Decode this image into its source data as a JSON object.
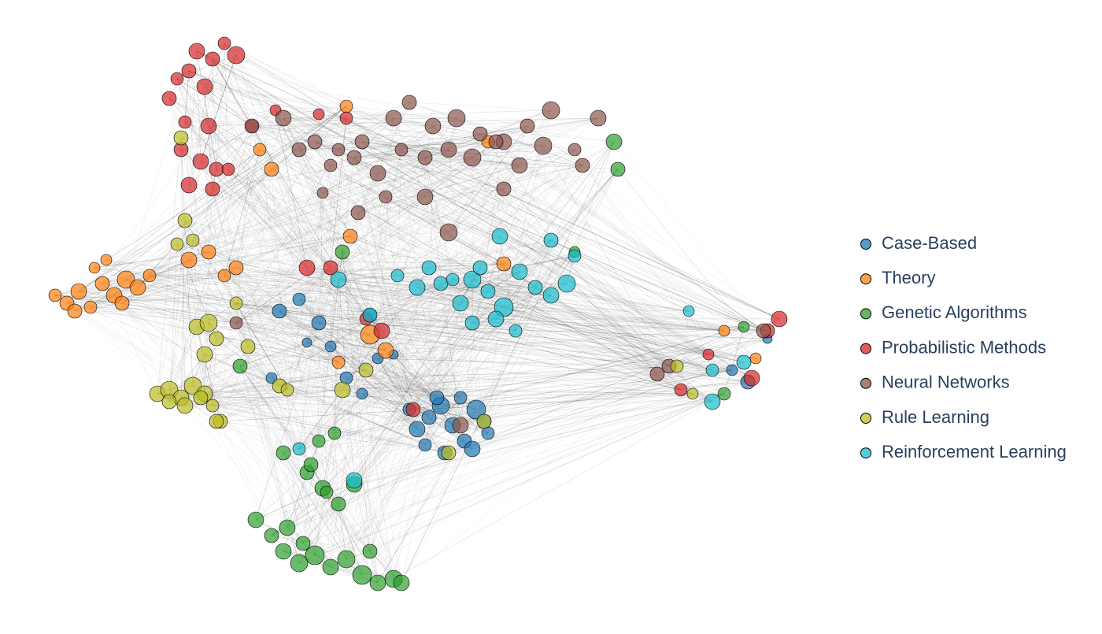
{
  "chart_data": {
    "type": "network",
    "series": [
      {
        "name": "Case-Based",
        "color": "#1f77b4",
        "x": [
          530,
          545,
          560,
          575,
          590,
          605,
          620,
          540,
          565,
          600,
          615,
          585,
          555,
          520,
          355,
          380,
          405,
          420,
          470,
          480,
          500,
          460,
          390,
          950,
          930,
          975,
          345,
          440
        ],
        "y": [
          545,
          530,
          515,
          540,
          560,
          520,
          550,
          565,
          575,
          570,
          535,
          505,
          505,
          520,
          395,
          380,
          410,
          440,
          400,
          455,
          450,
          500,
          435,
          485,
          470,
          430,
          480,
          480
        ],
        "size": [
          10,
          9,
          11,
          10,
          9,
          12,
          8,
          8,
          9,
          10,
          9,
          8,
          9,
          8,
          9,
          8,
          9,
          7,
          8,
          7,
          6,
          7,
          6,
          9,
          7,
          6,
          7,
          8
        ]
      },
      {
        "name": "Theory",
        "color": "#ff7f0e",
        "x": [
          70,
          85,
          100,
          115,
          130,
          145,
          160,
          175,
          190,
          95,
          120,
          155,
          135,
          240,
          265,
          285,
          300,
          330,
          345,
          445,
          470,
          490,
          430,
          440,
          620,
          640,
          960,
          920
        ],
        "y": [
          375,
          385,
          370,
          390,
          360,
          375,
          355,
          365,
          350,
          395,
          340,
          385,
          330,
          330,
          320,
          350,
          340,
          190,
          215,
          300,
          425,
          445,
          460,
          135,
          180,
          335,
          455,
          420
        ],
        "size": [
          8,
          9,
          10,
          8,
          9,
          10,
          11,
          10,
          8,
          9,
          7,
          9,
          7,
          10,
          9,
          8,
          9,
          8,
          9,
          9,
          12,
          10,
          8,
          8,
          8,
          9,
          7,
          7
        ]
      },
      {
        "name": "Genetic Algorithms",
        "color": "#2ca02c",
        "x": [
          360,
          380,
          400,
          420,
          440,
          460,
          480,
          500,
          510,
          390,
          410,
          430,
          450,
          470,
          325,
          345,
          365,
          385,
          405,
          425,
          395,
          415,
          360,
          780,
          785,
          730,
          920,
          945,
          305,
          435
        ],
        "y": [
          700,
          715,
          705,
          720,
          710,
          730,
          740,
          735,
          740,
          600,
          620,
          640,
          615,
          700,
          660,
          680,
          670,
          690,
          560,
          550,
          590,
          625,
          575,
          180,
          215,
          320,
          500,
          415,
          465,
          320
        ],
        "size": [
          10,
          11,
          12,
          10,
          11,
          12,
          10,
          11,
          10,
          9,
          10,
          9,
          10,
          9,
          10,
          9,
          10,
          9,
          8,
          8,
          9,
          8,
          9,
          10,
          9,
          7,
          8,
          7,
          9,
          9
        ]
      },
      {
        "name": "Probabilistic Methods",
        "color": "#d62728",
        "x": [
          250,
          270,
          285,
          300,
          225,
          240,
          260,
          215,
          235,
          265,
          230,
          255,
          275,
          290,
          240,
          270,
          320,
          350,
          405,
          440,
          420,
          390,
          465,
          990,
          975,
          955,
          865,
          900,
          525,
          485
        ],
        "y": [
          65,
          75,
          55,
          70,
          100,
          90,
          110,
          125,
          155,
          160,
          190,
          205,
          215,
          215,
          235,
          240,
          160,
          140,
          145,
          150,
          340,
          340,
          405,
          405,
          420,
          480,
          495,
          450,
          520,
          420
        ],
        "size": [
          10,
          9,
          8,
          11,
          8,
          9,
          10,
          9,
          8,
          10,
          9,
          10,
          9,
          8,
          10,
          9,
          8,
          7,
          7,
          8,
          9,
          10,
          8,
          10,
          9,
          10,
          8,
          7,
          9,
          10
        ]
      },
      {
        "name": "Neural Networks",
        "color": "#8c564b",
        "x": [
          360,
          400,
          430,
          460,
          500,
          520,
          550,
          580,
          610,
          640,
          670,
          700,
          730,
          760,
          380,
          420,
          450,
          480,
          510,
          540,
          570,
          600,
          630,
          660,
          690,
          740,
          455,
          490,
          540,
          570,
          640,
          410,
          320,
          585,
          300,
          850,
          970,
          835
        ],
        "y": [
          150,
          180,
          190,
          180,
          150,
          130,
          160,
          150,
          170,
          180,
          160,
          140,
          190,
          150,
          190,
          210,
          200,
          220,
          190,
          200,
          190,
          200,
          180,
          210,
          185,
          210,
          270,
          250,
          250,
          295,
          240,
          245,
          160,
          540,
          410,
          465,
          420,
          475
        ],
        "size": [
          10,
          9,
          8,
          9,
          10,
          9,
          10,
          11,
          9,
          10,
          9,
          11,
          8,
          10,
          9,
          8,
          9,
          10,
          8,
          9,
          10,
          11,
          9,
          10,
          11,
          9,
          9,
          8,
          10,
          11,
          9,
          7,
          9,
          10,
          8,
          9,
          9,
          9
        ]
      },
      {
        "name": "Rule Learning",
        "color": "#bcbd22",
        "x": [
          200,
          215,
          230,
          245,
          260,
          215,
          235,
          255,
          270,
          280,
          250,
          265,
          275,
          260,
          235,
          245,
          225,
          230,
          355,
          365,
          300,
          315,
          465,
          435,
          570,
          615,
          275,
          860,
          880
        ],
        "y": [
          500,
          495,
          505,
          490,
          500,
          510,
          515,
          505,
          515,
          535,
          415,
          410,
          430,
          450,
          280,
          305,
          310,
          175,
          490,
          495,
          385,
          440,
          470,
          495,
          575,
          535,
          535,
          465,
          500
        ],
        "size": [
          10,
          11,
          10,
          11,
          10,
          9,
          10,
          9,
          8,
          9,
          10,
          11,
          9,
          10,
          9,
          8,
          8,
          9,
          9,
          8,
          8,
          9,
          9,
          10,
          9,
          9,
          9,
          8,
          7
        ]
      },
      {
        "name": "Reinforcement Learning",
        "color": "#17becf",
        "x": [
          530,
          560,
          585,
          600,
          620,
          640,
          660,
          680,
          700,
          720,
          600,
          630,
          655,
          610,
          575,
          545,
          505,
          635,
          700,
          730,
          430,
          470,
          380,
          450,
          905,
          945,
          905,
          875
        ],
        "y": [
          365,
          360,
          385,
          355,
          370,
          390,
          345,
          365,
          375,
          360,
          410,
          405,
          420,
          340,
          355,
          340,
          350,
          300,
          305,
          325,
          355,
          400,
          570,
          610,
          510,
          460,
          470,
          395
        ],
        "size": [
          10,
          9,
          10,
          11,
          9,
          12,
          10,
          9,
          10,
          11,
          9,
          10,
          8,
          9,
          8,
          9,
          8,
          10,
          9,
          8,
          10,
          9,
          8,
          10,
          10,
          9,
          8,
          7
        ]
      }
    ]
  }
}
